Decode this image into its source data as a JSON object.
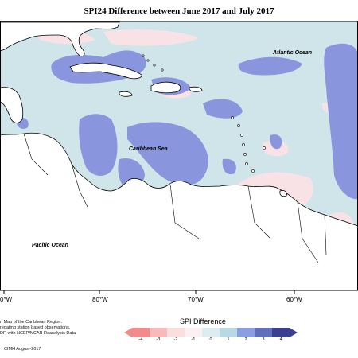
{
  "title": "SPI24 Difference between June 2017 and July 2017",
  "labels": {
    "atlantic": "Atlantic Ocean",
    "caribbean": "Caribbean Sea",
    "pacific": "Pacific Ocean"
  },
  "longitudes": [
    "0°W",
    "80°W",
    "70°W",
    "60°W"
  ],
  "notes": [
    "n Map of the Caribbean Region.",
    "regating station based observations,",
    "DF, with NCEP/NCAR Reanalysis Data."
  ],
  "footer": "CIMH August-2017",
  "legend": {
    "title": "SPI Difference",
    "ticks": [
      "-4",
      "-3",
      "-2",
      "-1",
      "0",
      "1",
      "2",
      "3",
      "4"
    ],
    "colors": [
      "#f28b8b",
      "#f7b9b9",
      "#fbdede",
      "#fdf0f2",
      "#dcecf0",
      "#b9d9e2",
      "#8a9ee0",
      "#6070b8",
      "#3a3f90"
    ]
  },
  "colors": {
    "ocean_base": "#cfe5ea",
    "dry": "#f9e2e6",
    "wet_strong": "#8995dc",
    "land": "#ffffff"
  }
}
